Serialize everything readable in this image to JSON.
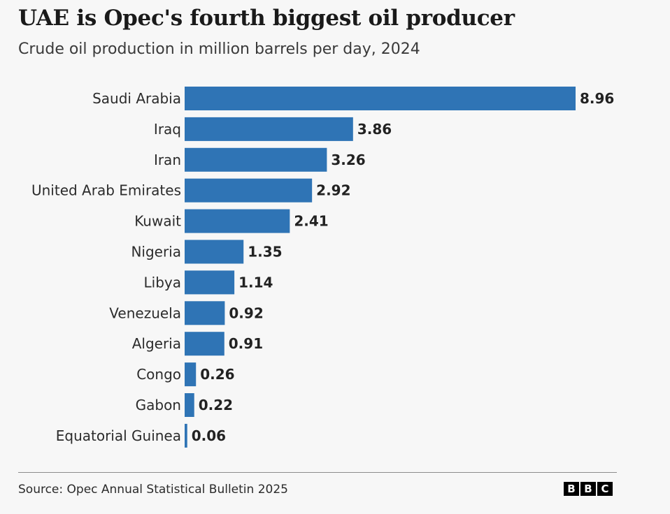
{
  "header": {
    "title": "UAE is Opec's fourth biggest oil producer",
    "subtitle": "Crude oil production in million barrels per day, 2024"
  },
  "footer": {
    "source": "Source: Opec Annual Statistical Bulletin 2025",
    "logo_letters": [
      "B",
      "B",
      "C"
    ]
  },
  "colors": {
    "bar": "#2f74b5",
    "background": "#f7f7f7"
  },
  "chart_data": {
    "type": "bar",
    "orientation": "horizontal",
    "title": "UAE is Opec's fourth biggest oil producer",
    "subtitle": "Crude oil production in million barrels per day, 2024",
    "categories": [
      "Saudi Arabia",
      "Iraq",
      "Iran",
      "United Arab Emirates",
      "Kuwait",
      "Nigeria",
      "Libya",
      "Venezuela",
      "Algeria",
      "Congo",
      "Gabon",
      "Equatorial Guinea"
    ],
    "values": [
      8.96,
      3.86,
      3.26,
      2.92,
      2.41,
      1.35,
      1.14,
      0.92,
      0.91,
      0.26,
      0.22,
      0.06
    ],
    "value_labels": [
      "8.96",
      "3.86",
      "3.26",
      "2.92",
      "2.41",
      "1.35",
      "1.14",
      "0.92",
      "0.91",
      "0.26",
      "0.22",
      "0.06"
    ],
    "xlabel": "",
    "ylabel": "",
    "xlim": [
      0,
      8.96
    ],
    "grid": false,
    "legend": "none"
  }
}
